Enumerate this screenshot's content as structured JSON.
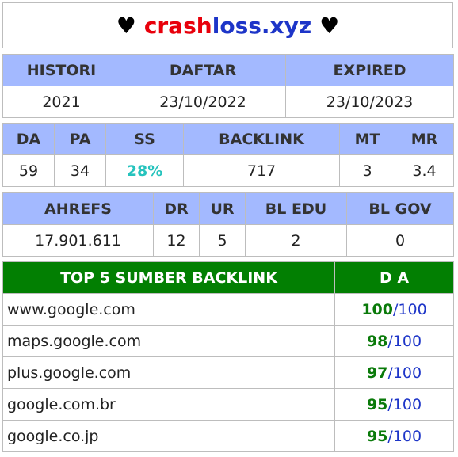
{
  "header": {
    "heart_left": "♥",
    "domain_part1": "crash",
    "domain_part2": "loss.xyz",
    "heart_right": "♥"
  },
  "registration": {
    "headers": [
      "HISTORI",
      "DAFTAR",
      "EXPIRED"
    ],
    "values": [
      "2021",
      "23/10/2022",
      "23/10/2023"
    ]
  },
  "metrics": {
    "headers": [
      "DA",
      "PA",
      "SS",
      "BACKLINK",
      "MT",
      "MR"
    ],
    "values": [
      "59",
      "34",
      "28%",
      "717",
      "3",
      "3.4"
    ]
  },
  "ahrefs": {
    "headers": [
      "AHREFS",
      "DR",
      "UR",
      "BL EDU",
      "BL GOV"
    ],
    "values": [
      "17.901.611",
      "12",
      "5",
      "2",
      "0"
    ]
  },
  "sources": {
    "title": "TOP 5 SUMBER BACKLINK",
    "da_header": "D A",
    "separator": "/",
    "rows": [
      {
        "domain": "www.google.com",
        "da": "100",
        "max": "100"
      },
      {
        "domain": "maps.google.com",
        "da": "98",
        "max": "100"
      },
      {
        "domain": "plus.google.com",
        "da": "97",
        "max": "100"
      },
      {
        "domain": "google.com.br",
        "da": "95",
        "max": "100"
      },
      {
        "domain": "google.co.jp",
        "da": "95",
        "max": "100"
      }
    ]
  },
  "colors": {
    "header_blue": "#a3b9ff",
    "header_green": "#027f02",
    "red": "#e8000b",
    "blue": "#1d35c8",
    "teal": "#26c3bd",
    "green_text": "#0a7a0a"
  }
}
